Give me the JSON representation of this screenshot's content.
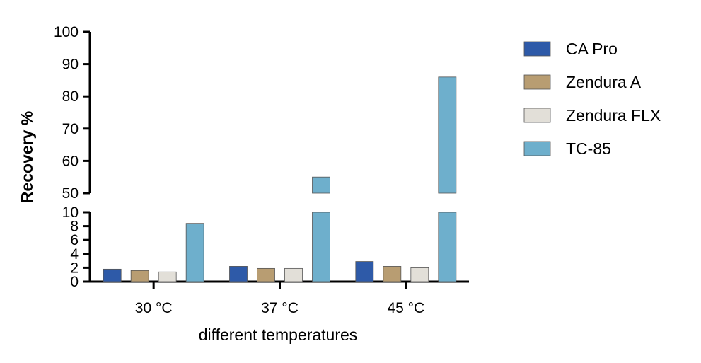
{
  "chart_data": {
    "type": "bar",
    "title": "",
    "xlabel": "different temperatures",
    "ylabel": "Recovery %",
    "categories": [
      "30 °C",
      "37 °C",
      "45 °C"
    ],
    "series": [
      {
        "name": "CA Pro",
        "color": "#2e5aa8",
        "values": [
          1.8,
          2.2,
          2.9
        ]
      },
      {
        "name": "Zendura A",
        "color": "#b89d72",
        "values": [
          1.6,
          1.9,
          2.2
        ]
      },
      {
        "name": "Zendura FLX",
        "color": "#e2dfd8",
        "values": [
          1.4,
          1.9,
          2.0
        ]
      },
      {
        "name": "TC-85",
        "color": "#6eafcc",
        "values": [
          8.4,
          55,
          86
        ]
      }
    ],
    "y_axis_broken": true,
    "y_segments": [
      {
        "range": [
          0,
          10
        ],
        "ticks": [
          "0",
          "2",
          "4",
          "6",
          "8",
          "10"
        ],
        "tick_values": [
          0,
          2,
          4,
          6,
          8,
          10
        ]
      },
      {
        "range": [
          50,
          100
        ],
        "ticks": [
          "50",
          "60",
          "70",
          "80",
          "90",
          "100"
        ],
        "tick_values": [
          50,
          60,
          70,
          80,
          90,
          100
        ]
      }
    ],
    "legend_position": "right",
    "grid": false
  }
}
